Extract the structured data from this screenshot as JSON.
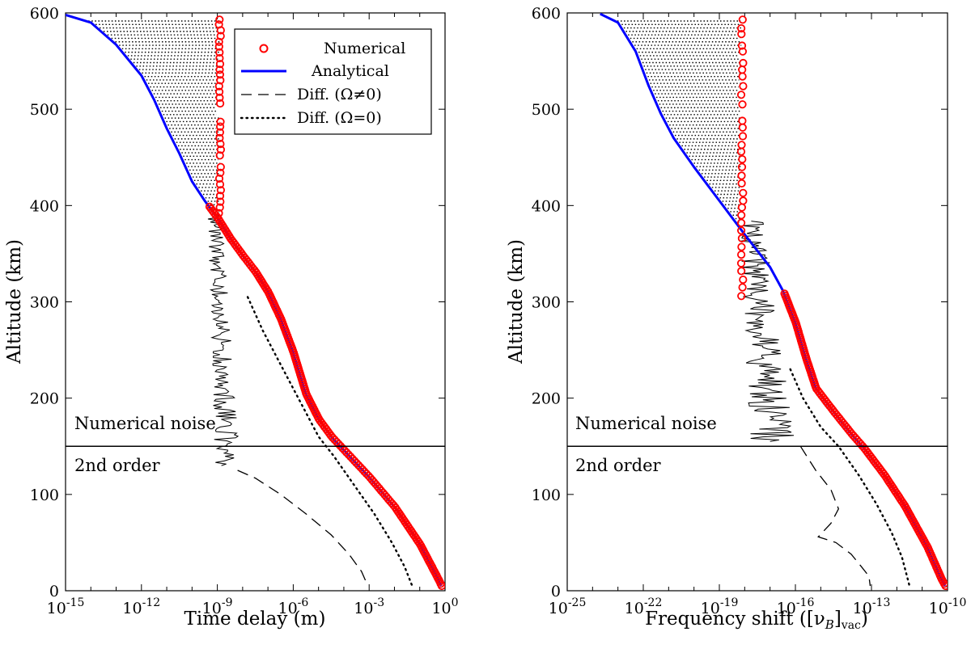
{
  "chart_data": [
    {
      "type": "line",
      "title": "",
      "xlabel": "Time delay (m)",
      "ylabel": "Altitude (km)",
      "xscale": "log",
      "xlim_exp": [
        -15,
        0
      ],
      "ylim": [
        0,
        600
      ],
      "x_ticks": [
        {
          "exp": -15,
          "base": "10",
          "sup": "-15"
        },
        {
          "exp": -12,
          "base": "10",
          "sup": "-12"
        },
        {
          "exp": -9,
          "base": "10",
          "sup": "-9"
        },
        {
          "exp": -6,
          "base": "10",
          "sup": "-6"
        },
        {
          "exp": -3,
          "base": "10",
          "sup": "-3"
        },
        {
          "exp": 0,
          "base": "10",
          "sup": "0"
        }
      ],
      "y_ticks": [
        "0",
        "100",
        "200",
        "300",
        "400",
        "500",
        "600"
      ],
      "y_tick_values": [
        0,
        100,
        200,
        300,
        400,
        500,
        600
      ],
      "separator_altitude": 150,
      "region_labels": {
        "upper": "Numerical noise",
        "lower": "2nd order"
      },
      "legend": {
        "position": "top-right",
        "entries": [
          {
            "label": "Numerical",
            "style": "red-circle"
          },
          {
            "label": "Analytical",
            "style": "blue-solid"
          },
          {
            "label": "Diff. (Ω≠0)",
            "style": "black-dashed"
          },
          {
            "label": "Diff. (Ω=0)",
            "style": "black-dotted"
          }
        ]
      },
      "series": [
        {
          "name": "Analytical",
          "color": "#0000ff",
          "points": [
            [
              -15,
              598
            ],
            [
              -14,
              590
            ],
            [
              -13,
              567
            ],
            [
              -12,
              535
            ],
            [
              -11.5,
              510
            ],
            [
              -11,
              480
            ],
            [
              -10.5,
              454
            ],
            [
              -10,
              425
            ],
            [
              -9.5,
              405
            ],
            [
              -9,
              387
            ],
            [
              -8.5,
              366
            ],
            [
              -8,
              348
            ],
            [
              -7.5,
              331
            ],
            [
              -7,
              310
            ],
            [
              -6.5,
              282
            ],
            [
              -6,
              247
            ],
            [
              -5.5,
              204
            ],
            [
              -5,
              178
            ],
            [
              -4.5,
              160
            ],
            [
              -4,
              146
            ],
            [
              -3,
              118
            ],
            [
              -2,
              87
            ],
            [
              -1,
              48
            ],
            [
              -0.3,
              13
            ],
            [
              -0.15,
              5
            ]
          ]
        },
        {
          "name": "Numerical",
          "color": "#ff0000",
          "marker_exp_noise": -8.9,
          "noise_range": [
            390,
            593
          ],
          "noise_altitudes": [
            593,
            588,
            582,
            576,
            570,
            565,
            559,
            553,
            547,
            541,
            536,
            530,
            524,
            518,
            512,
            506,
            487,
            482,
            476,
            470,
            464,
            458,
            452,
            440,
            434,
            428,
            422,
            416,
            410,
            404,
            398,
            392
          ]
        },
        {
          "name": "Diff. (Ω≠0)",
          "color": "#000000",
          "points": [
            [
              -8.2,
              125
            ],
            [
              -7.5,
              117
            ],
            [
              -6.5,
              100
            ],
            [
              -5.5,
              80
            ],
            [
              -4.5,
              58
            ],
            [
              -3.8,
              38
            ],
            [
              -3.3,
              20
            ],
            [
              -3.05,
              5
            ]
          ],
          "noise_exp_range": [
            -9.8,
            -7.8
          ],
          "noise_alt_range": [
            130,
            388
          ]
        },
        {
          "name": "Diff. (Ω=0)",
          "color": "#000000",
          "points": [
            [
              -7.8,
              305
            ],
            [
              -7.2,
              270
            ],
            [
              -6.6,
              240
            ],
            [
              -6,
              210
            ],
            [
              -5.4,
              180
            ],
            [
              -5,
              160
            ],
            [
              -4.4,
              140
            ],
            [
              -3.6,
              110
            ],
            [
              -2.8,
              80
            ],
            [
              -2.1,
              50
            ],
            [
              -1.6,
              25
            ],
            [
              -1.3,
              5
            ]
          ]
        }
      ]
    },
    {
      "type": "line",
      "title": "",
      "xlabel": "Frequency shift ([ν",
      "xlabel_sub": "B",
      "xlabel_suffix": "]",
      "xlabel_sub2": "vac",
      "xlabel_end": ")",
      "ylabel": "Altitude (km)",
      "xscale": "log",
      "xlim_exp": [
        -25,
        -10
      ],
      "ylim": [
        0,
        600
      ],
      "x_ticks": [
        {
          "exp": -25,
          "base": "10",
          "sup": "-25"
        },
        {
          "exp": -22,
          "base": "10",
          "sup": "-22"
        },
        {
          "exp": -19,
          "base": "10",
          "sup": "-19"
        },
        {
          "exp": -16,
          "base": "10",
          "sup": "-16"
        },
        {
          "exp": -13,
          "base": "10",
          "sup": "-13"
        },
        {
          "exp": -10,
          "base": "10",
          "sup": "-10"
        }
      ],
      "y_ticks": [
        "0",
        "100",
        "200",
        "300",
        "400",
        "500",
        "600"
      ],
      "y_tick_values": [
        0,
        100,
        200,
        300,
        400,
        500,
        600
      ],
      "separator_altitude": 150,
      "region_labels": {
        "upper": "Numerical noise",
        "lower": "2nd order"
      },
      "series": [
        {
          "name": "Analytical",
          "color": "#0000ff",
          "points": [
            [
              -23.7,
              599
            ],
            [
              -23,
              590
            ],
            [
              -22.3,
              560
            ],
            [
              -21.8,
              525
            ],
            [
              -21.3,
              495
            ],
            [
              -20.8,
              470
            ],
            [
              -20,
              440
            ],
            [
              -19,
              405
            ],
            [
              -18,
              370
            ],
            [
              -17,
              336
            ],
            [
              -16.5,
              312
            ],
            [
              -16,
              278
            ],
            [
              -15.6,
              242
            ],
            [
              -15.2,
              210
            ],
            [
              -14.5,
              186
            ],
            [
              -13.8,
              163
            ],
            [
              -13.3,
              148
            ],
            [
              -12.5,
              120
            ],
            [
              -11.7,
              88
            ],
            [
              -10.8,
              45
            ],
            [
              -10.25,
              12
            ],
            [
              -10.1,
              5
            ]
          ]
        },
        {
          "name": "Numerical",
          "color": "#ff0000",
          "marker_exp_noise": -18.1,
          "noise_range": [
            300,
            593
          ],
          "noise_altitudes": [
            593,
            584,
            578,
            566,
            560,
            548,
            541,
            534,
            524,
            515,
            505,
            488,
            481,
            472,
            463,
            456,
            448,
            440,
            431,
            423,
            413,
            405,
            398,
            390,
            382,
            374,
            366,
            357,
            349,
            340,
            332,
            323,
            315,
            306
          ]
        },
        {
          "name": "Diff. (Ω≠0)",
          "color": "#000000",
          "points": [
            [
              -15.8,
              150
            ],
            [
              -15.2,
              125
            ],
            [
              -14.6,
              105
            ],
            [
              -14.3,
              85
            ],
            [
              -14.6,
              70
            ],
            [
              -15.1,
              56
            ],
            [
              -14.4,
              50
            ],
            [
              -13.8,
              38
            ],
            [
              -13.4,
              25
            ],
            [
              -13.1,
              15
            ],
            [
              -13.05,
              5
            ]
          ],
          "noise_exp_range": [
            -19,
            -15.5
          ],
          "noise_alt_range": [
            155,
            385
          ]
        },
        {
          "name": "Diff. (Ω=0)",
          "color": "#000000",
          "points": [
            [
              -16.2,
              230
            ],
            [
              -15.7,
              200
            ],
            [
              -15,
              170
            ],
            [
              -14.3,
              150
            ],
            [
              -13.5,
              120
            ],
            [
              -12.8,
              90
            ],
            [
              -12.2,
              60
            ],
            [
              -11.8,
              35
            ],
            [
              -11.6,
              15
            ],
            [
              -11.5,
              5
            ]
          ]
        }
      ]
    }
  ]
}
